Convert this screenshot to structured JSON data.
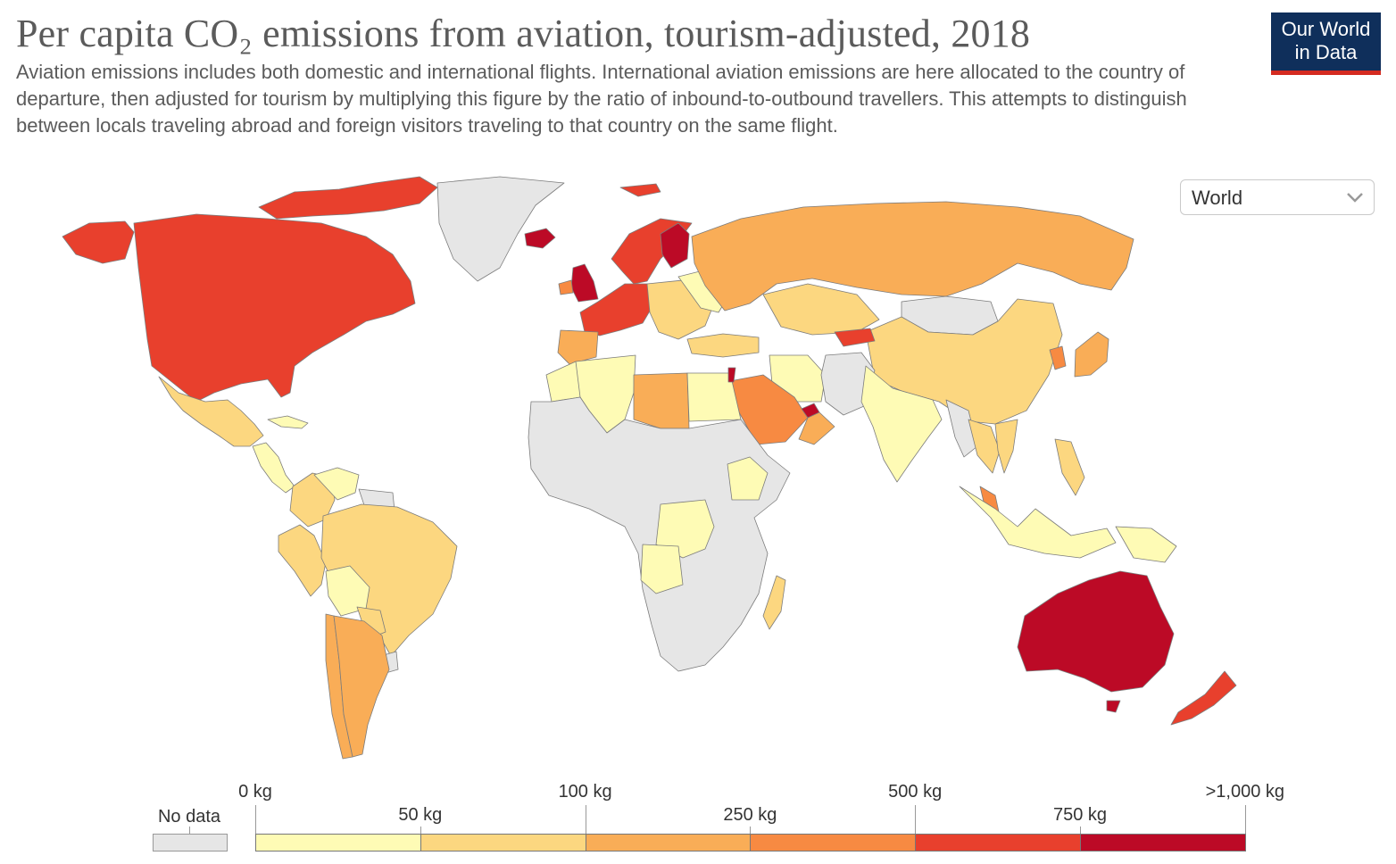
{
  "title": "Per capita CO₂ emissions from aviation, tourism-adjusted, 2018",
  "subtitle": "Aviation emissions includes both domestic and international flights. International aviation emissions are here allocated to the country of departure, then adjusted for tourism by multiplying this figure by the ratio of inbound-to-outbound travellers. This attempts to distinguish between locals traveling abroad and foreign visitors traveling to that country on the same flight.",
  "logo": {
    "line1": "Our World",
    "line2": "in Data",
    "bg_color": "#0f2f5b",
    "accent_color": "#d42b21"
  },
  "region_selector": {
    "value": "World",
    "icon": "chevron-down-icon"
  },
  "legend": {
    "no_data_label": "No data",
    "no_data_color": "#e6e6e6",
    "bins": [
      {
        "from": "0 kg",
        "to": "50 kg",
        "color": "#fefbb5"
      },
      {
        "from": "50 kg",
        "to": "100 kg",
        "color": "#fcd780"
      },
      {
        "from": "100 kg",
        "to": "250 kg",
        "color": "#f9ad57"
      },
      {
        "from": "250 kg",
        "to": "500 kg",
        "color": "#f78a42"
      },
      {
        "from": "500 kg",
        "to": "750 kg",
        "color": "#e8402d"
      },
      {
        "from": "750 kg",
        "to": ">1,000 kg",
        "color": "#bc0a26"
      }
    ],
    "tick_labels": [
      "0 kg",
      "50 kg",
      "100 kg",
      "250 kg",
      "500 kg",
      "750 kg",
      ">1,000 kg"
    ]
  },
  "map_regions": [
    {
      "name": "greenland",
      "color": "#e6e6e6"
    },
    {
      "name": "canada-arctic",
      "color": "#e8402d"
    },
    {
      "name": "north-america",
      "color": "#e8402d"
    },
    {
      "name": "alaska",
      "color": "#e8402d"
    },
    {
      "name": "mexico",
      "color": "#fcd780"
    },
    {
      "name": "central-america",
      "color": "#fefbb5"
    },
    {
      "name": "cuba",
      "color": "#fefbb5"
    },
    {
      "name": "colombia",
      "color": "#fcd780"
    },
    {
      "name": "venezuela",
      "color": "#fefbb5"
    },
    {
      "name": "guianas",
      "color": "#e6e6e6"
    },
    {
      "name": "peru",
      "color": "#fcd780"
    },
    {
      "name": "brazil",
      "color": "#fcd780"
    },
    {
      "name": "bolivia",
      "color": "#fefbb5"
    },
    {
      "name": "paraguay",
      "color": "#fcd780"
    },
    {
      "name": "uruguay",
      "color": "#e6e6e6"
    },
    {
      "name": "chile",
      "color": "#f9ad57"
    },
    {
      "name": "argentina",
      "color": "#f9ad57"
    },
    {
      "name": "iceland",
      "color": "#bc0a26"
    },
    {
      "name": "svalbard",
      "color": "#e8402d"
    },
    {
      "name": "uk",
      "color": "#bc0a26"
    },
    {
      "name": "ireland",
      "color": "#f78a42"
    },
    {
      "name": "scandinavia",
      "color": "#e8402d"
    },
    {
      "name": "finland",
      "color": "#bc0a26"
    },
    {
      "name": "western-europe",
      "color": "#e8402d"
    },
    {
      "name": "iberia",
      "color": "#f9ad57"
    },
    {
      "name": "central-europe",
      "color": "#fcd780"
    },
    {
      "name": "eastern-europe",
      "color": "#fefbb5"
    },
    {
      "name": "russia",
      "color": "#f9ad57"
    },
    {
      "name": "turkey",
      "color": "#fcd780"
    },
    {
      "name": "kazakhstan",
      "color": "#fcd780"
    },
    {
      "name": "mongolia",
      "color": "#e6e6e6"
    },
    {
      "name": "china",
      "color": "#fcd780"
    },
    {
      "name": "kyrgyzstan",
      "color": "#e8402d"
    },
    {
      "name": "korea",
      "color": "#f78a42"
    },
    {
      "name": "japan",
      "color": "#f9ad57"
    },
    {
      "name": "iran",
      "color": "#fefbb5"
    },
    {
      "name": "afghanistan-pakistan",
      "color": "#e6e6e6"
    },
    {
      "name": "saudi-arabia",
      "color": "#f78a42"
    },
    {
      "name": "uae",
      "color": "#bc0a26"
    },
    {
      "name": "oman",
      "color": "#f9ad57"
    },
    {
      "name": "india",
      "color": "#fefbb5"
    },
    {
      "name": "myanmar",
      "color": "#e6e6e6"
    },
    {
      "name": "thailand",
      "color": "#fcd780"
    },
    {
      "name": "vietnam",
      "color": "#fcd780"
    },
    {
      "name": "malaysia",
      "color": "#f78a42"
    },
    {
      "name": "philippines",
      "color": "#fcd780"
    },
    {
      "name": "indonesia",
      "color": "#fefbb5"
    },
    {
      "name": "png",
      "color": "#fefbb5"
    },
    {
      "name": "australia",
      "color": "#bc0a26"
    },
    {
      "name": "tasmania",
      "color": "#bc0a26"
    },
    {
      "name": "new-zealand",
      "color": "#e8402d"
    },
    {
      "name": "morocco",
      "color": "#fefbb5"
    },
    {
      "name": "algeria",
      "color": "#fefbb5"
    },
    {
      "name": "libya",
      "color": "#f9ad57"
    },
    {
      "name": "egypt",
      "color": "#fefbb5"
    },
    {
      "name": "israel",
      "color": "#bc0a26"
    },
    {
      "name": "africa-nodata",
      "color": "#e6e6e6"
    },
    {
      "name": "ethiopia",
      "color": "#fefbb5"
    },
    {
      "name": "dr-congo",
      "color": "#fefbb5"
    },
    {
      "name": "angola",
      "color": "#fefbb5"
    },
    {
      "name": "madagascar",
      "color": "#fcd780"
    }
  ]
}
